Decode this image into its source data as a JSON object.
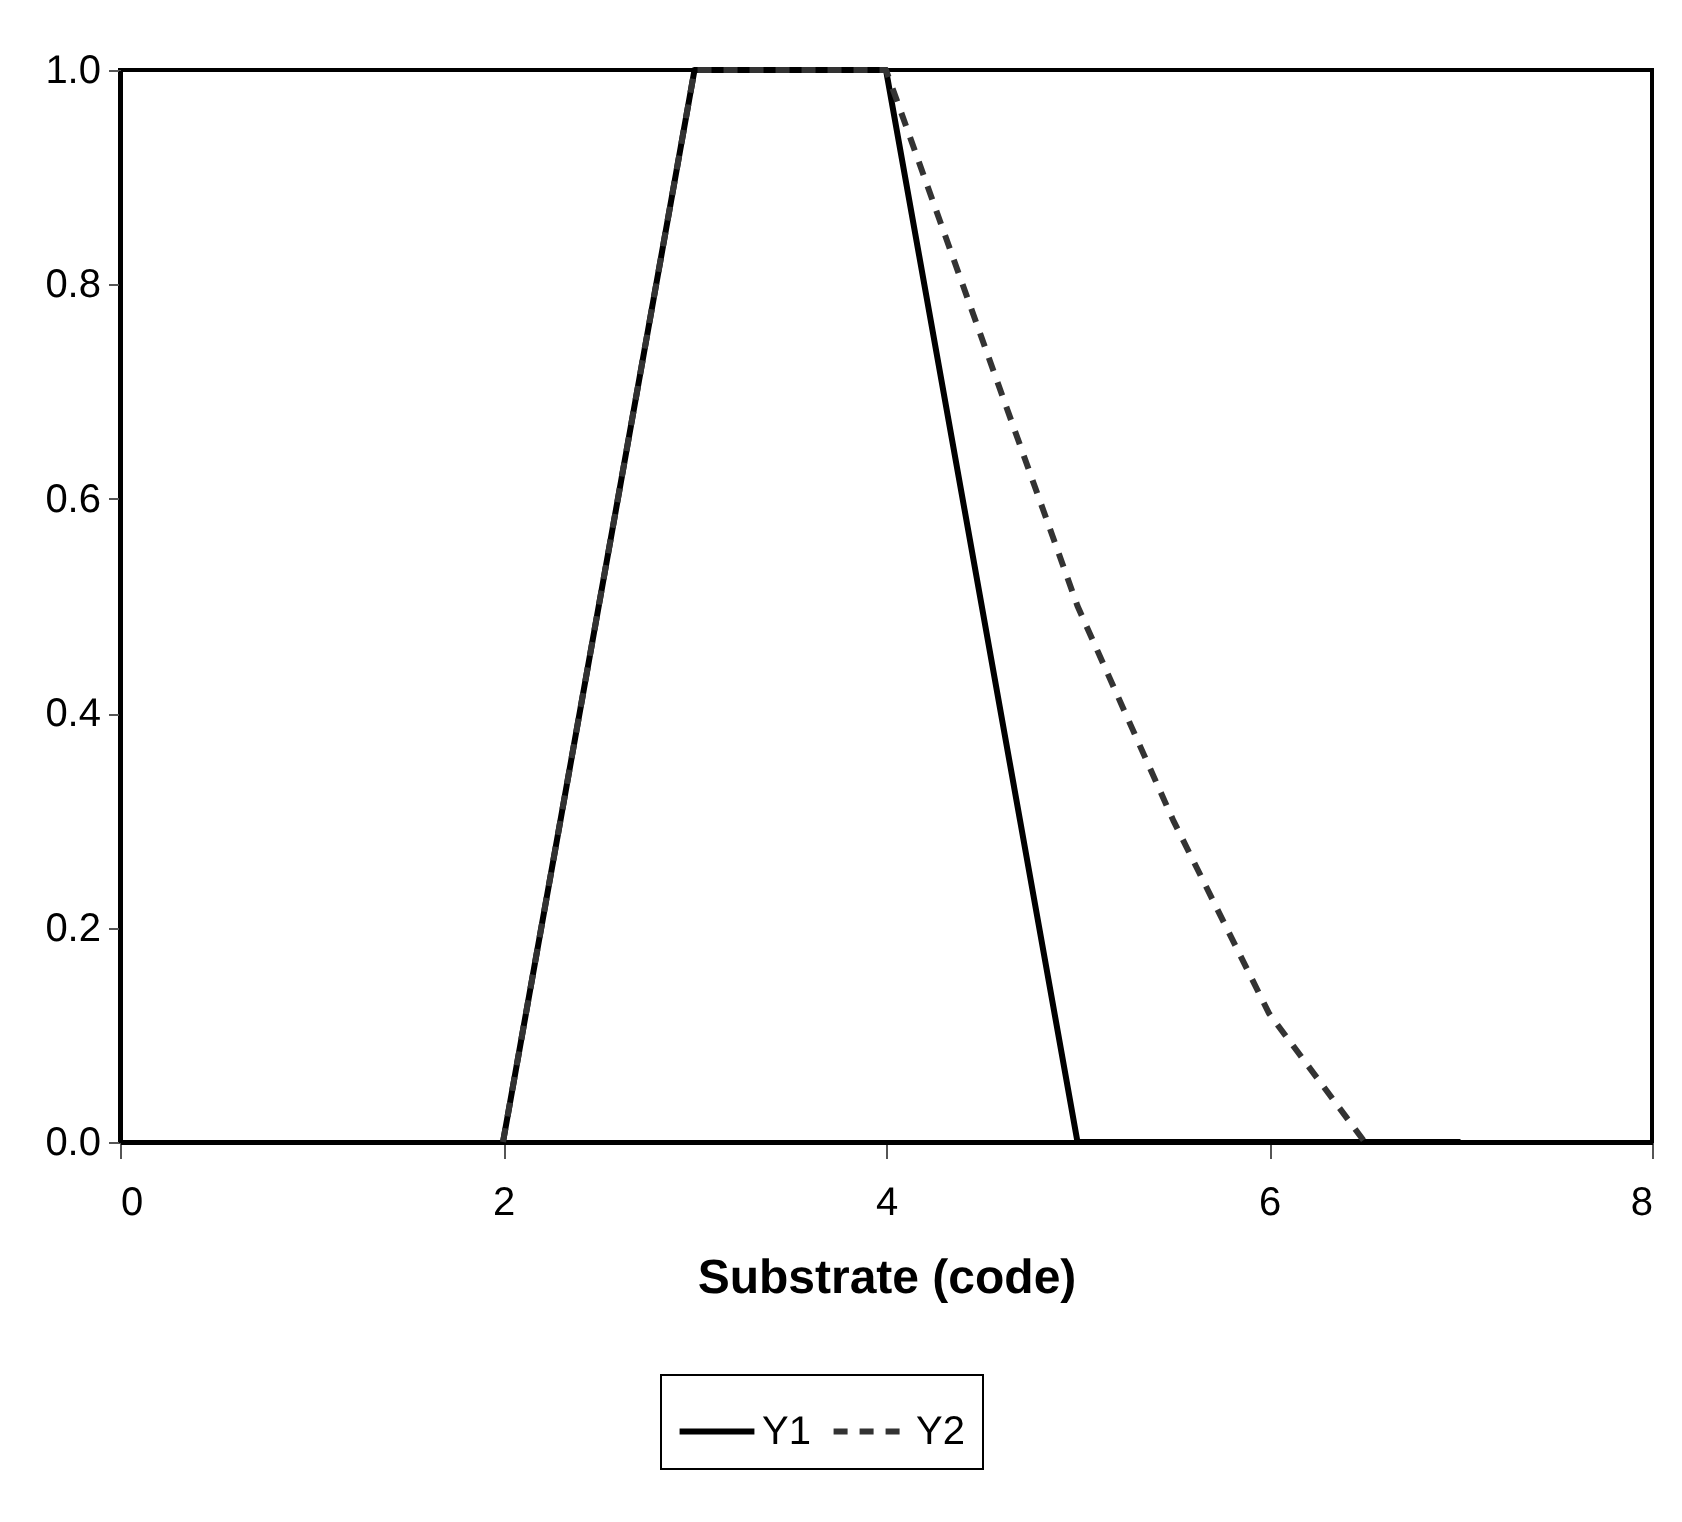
{
  "chart_data": {
    "type": "line",
    "xlabel": "Substrate (code)",
    "xlim": [
      0,
      8
    ],
    "xticks": [
      0,
      2,
      4,
      6,
      8
    ],
    "ylim": [
      0,
      1
    ],
    "yticks": [
      {
        "value": 0,
        "label": "0.0"
      },
      {
        "value": 0.2,
        "label": "0.2"
      },
      {
        "value": 0.4,
        "label": "0.4"
      },
      {
        "value": 0.6,
        "label": "0.6"
      },
      {
        "value": 0.8,
        "label": "0.8"
      },
      {
        "value": 1,
        "label": "1.0"
      }
    ],
    "grid": false,
    "legend": "bottom",
    "marker": "none",
    "series": [
      {
        "name": "Y1",
        "color": "#000000",
        "line_style": "solid",
        "x": [
          2,
          3,
          4,
          5,
          6,
          7
        ],
        "values": [
          0,
          1,
          1,
          0,
          0,
          0
        ]
      },
      {
        "name": "Y2",
        "color": "#333333",
        "line_style": "dashed",
        "x": [
          2,
          3,
          4,
          5,
          5.5,
          6,
          6.5
        ],
        "values": [
          0,
          1,
          1,
          0.5,
          0.3,
          0.12,
          0
        ]
      }
    ]
  }
}
